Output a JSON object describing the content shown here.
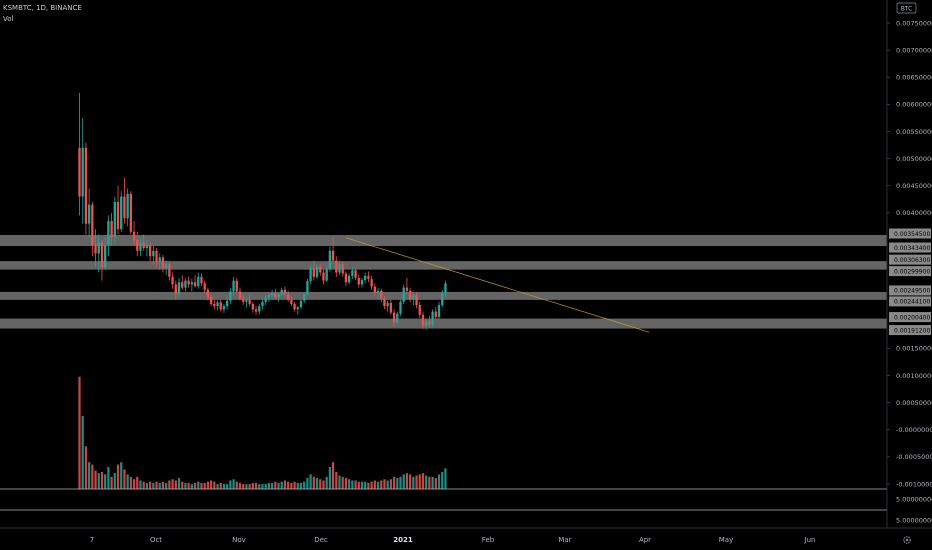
{
  "header": {
    "symbol_line": "KSMBTC, 1D, BINANCE",
    "volume_label": "Vol"
  },
  "currency_badge": "BTC",
  "colors": {
    "up": "#26a69a",
    "down": "#ef5350",
    "zone": "#8a8a8a",
    "trendline": "#c9a227",
    "axis_text": "#b2b5be"
  },
  "chart_data": {
    "type": "candlestick",
    "symbol": "KSMBTC",
    "interval": "1D",
    "exchange": "BINANCE",
    "price_axis": {
      "ticks": [
        "0.00750000",
        "0.00700000",
        "0.00650000",
        "0.00600000",
        "0.00550000",
        "0.00500000",
        "0.00450000",
        "0.00400000",
        "0.00150000",
        "0.00100000",
        "0.00050000",
        "-0.00000000",
        "-0.00050000",
        "-0.00100000"
      ],
      "ylim": [
        -0.0012,
        0.0078
      ]
    },
    "highlighted_levels": [
      "0.00354500",
      "0.00343400",
      "0.00306300",
      "0.00299900",
      "0.00249500",
      "0.00244100",
      "0.00200400",
      "0.00191200"
    ],
    "zones": [
      {
        "low": 0.003434,
        "high": 0.003545
      },
      {
        "low": 0.002999,
        "high": 0.003063
      },
      {
        "low": 0.002441,
        "high": 0.002495
      },
      {
        "low": 0.001912,
        "high": 0.002004
      }
    ],
    "lower_pane_labels": [
      "5.00000000",
      "5.00000000"
    ],
    "x_axis_labels": [
      {
        "text": "7",
        "bold": false
      },
      {
        "text": "Oct",
        "bold": false
      },
      {
        "text": "Nov",
        "bold": false
      },
      {
        "text": "Dec",
        "bold": false
      },
      {
        "text": "2021",
        "bold": true
      },
      {
        "text": "Feb",
        "bold": false
      },
      {
        "text": "Mar",
        "bold": false
      },
      {
        "text": "Apr",
        "bold": false
      },
      {
        "text": "May",
        "bold": false
      },
      {
        "text": "Jun",
        "bold": false
      }
    ],
    "trendline": {
      "from": {
        "candle": 83,
        "price": 0.00354
      },
      "to": {
        "candle": 153,
        "price": 0.00225
      }
    },
    "candles": {
      "fields": [
        "open",
        "high",
        "low",
        "close",
        "volume"
      ],
      "data": [
        [
          0.0052,
          0.00621,
          0.00395,
          0.0043,
          0.92
        ],
        [
          0.0043,
          0.00575,
          0.0038,
          0.0052,
          0.6
        ],
        [
          0.0052,
          0.0053,
          0.0036,
          0.0038,
          0.35
        ],
        [
          0.0038,
          0.00445,
          0.00355,
          0.00415,
          0.22
        ],
        [
          0.00415,
          0.0042,
          0.0032,
          0.0034,
          0.2
        ],
        [
          0.0034,
          0.0037,
          0.003,
          0.00325,
          0.15
        ],
        [
          0.00325,
          0.0036,
          0.0029,
          0.00345,
          0.13
        ],
        [
          0.00345,
          0.0035,
          0.00275,
          0.003,
          0.14
        ],
        [
          0.003,
          0.00355,
          0.00295,
          0.0034,
          0.12
        ],
        [
          0.0034,
          0.00395,
          0.0032,
          0.00385,
          0.18
        ],
        [
          0.00385,
          0.004,
          0.0034,
          0.00355,
          0.1
        ],
        [
          0.00355,
          0.0043,
          0.00345,
          0.0042,
          0.13
        ],
        [
          0.0042,
          0.0045,
          0.0036,
          0.0037,
          0.2
        ],
        [
          0.0037,
          0.0044,
          0.00365,
          0.0043,
          0.22
        ],
        [
          0.0043,
          0.00465,
          0.0038,
          0.0039,
          0.16
        ],
        [
          0.0039,
          0.00445,
          0.00375,
          0.00435,
          0.12
        ],
        [
          0.00435,
          0.0044,
          0.0036,
          0.00365,
          0.1
        ],
        [
          0.00365,
          0.00385,
          0.0034,
          0.0035,
          0.08
        ],
        [
          0.0035,
          0.00365,
          0.0032,
          0.0033,
          0.1
        ],
        [
          0.0033,
          0.00355,
          0.0032,
          0.00345,
          0.07
        ],
        [
          0.00345,
          0.0036,
          0.0033,
          0.00335,
          0.06
        ],
        [
          0.00335,
          0.0035,
          0.0032,
          0.0034,
          0.05
        ],
        [
          0.0034,
          0.00345,
          0.0031,
          0.0032,
          0.06
        ],
        [
          0.0032,
          0.0034,
          0.00305,
          0.0033,
          0.05
        ],
        [
          0.0033,
          0.00335,
          0.003,
          0.0031,
          0.06
        ],
        [
          0.0031,
          0.00325,
          0.00295,
          0.00318,
          0.05
        ],
        [
          0.00318,
          0.00322,
          0.0029,
          0.00298,
          0.06
        ],
        [
          0.00298,
          0.00312,
          0.00285,
          0.00305,
          0.05
        ],
        [
          0.00305,
          0.0031,
          0.00275,
          0.00282,
          0.07
        ],
        [
          0.00282,
          0.0029,
          0.0026,
          0.00268,
          0.08
        ],
        [
          0.00268,
          0.00275,
          0.0024,
          0.0025,
          0.07
        ],
        [
          0.0025,
          0.0028,
          0.00245,
          0.00272,
          0.09
        ],
        [
          0.00272,
          0.00285,
          0.00258,
          0.00262,
          0.06
        ],
        [
          0.00262,
          0.0028,
          0.00255,
          0.00275,
          0.05
        ],
        [
          0.00275,
          0.00282,
          0.00262,
          0.00268,
          0.05
        ],
        [
          0.00268,
          0.00278,
          0.00255,
          0.00272,
          0.04
        ],
        [
          0.00272,
          0.00285,
          0.00262,
          0.00265,
          0.05
        ],
        [
          0.00265,
          0.0029,
          0.0026,
          0.00282,
          0.06
        ],
        [
          0.00282,
          0.00288,
          0.00265,
          0.0027,
          0.05
        ],
        [
          0.0027,
          0.00275,
          0.00252,
          0.00258,
          0.05
        ],
        [
          0.00258,
          0.00262,
          0.00238,
          0.00245,
          0.06
        ],
        [
          0.00245,
          0.0025,
          0.00228,
          0.00232,
          0.07
        ],
        [
          0.00232,
          0.0024,
          0.00222,
          0.00228,
          0.06
        ],
        [
          0.00228,
          0.00238,
          0.0022,
          0.00235,
          0.04
        ],
        [
          0.00235,
          0.0024,
          0.00218,
          0.00222,
          0.05
        ],
        [
          0.00222,
          0.00232,
          0.00215,
          0.00228,
          0.04
        ],
        [
          0.00228,
          0.00242,
          0.00222,
          0.00238,
          0.04
        ],
        [
          0.00238,
          0.00262,
          0.00232,
          0.00255,
          0.07
        ],
        [
          0.00255,
          0.00282,
          0.00248,
          0.00275,
          0.08
        ],
        [
          0.00275,
          0.0028,
          0.0025,
          0.00255,
          0.06
        ],
        [
          0.00255,
          0.00262,
          0.00238,
          0.00242,
          0.05
        ],
        [
          0.00242,
          0.0025,
          0.0023,
          0.00236,
          0.04
        ],
        [
          0.00236,
          0.00244,
          0.00225,
          0.0024,
          0.04
        ],
        [
          0.0024,
          0.00248,
          0.00228,
          0.00232,
          0.04
        ],
        [
          0.00232,
          0.00236,
          0.00216,
          0.00222,
          0.05
        ],
        [
          0.00222,
          0.00228,
          0.00212,
          0.00218,
          0.05
        ],
        [
          0.00218,
          0.00232,
          0.00212,
          0.00228,
          0.04
        ],
        [
          0.00228,
          0.0024,
          0.00222,
          0.00236,
          0.04
        ],
        [
          0.00236,
          0.00248,
          0.0023,
          0.00244,
          0.04
        ],
        [
          0.00244,
          0.00254,
          0.00236,
          0.00248,
          0.05
        ],
        [
          0.00248,
          0.00258,
          0.00242,
          0.00252,
          0.05
        ],
        [
          0.00252,
          0.0026,
          0.0024,
          0.00244,
          0.06
        ],
        [
          0.00244,
          0.00252,
          0.00236,
          0.0025,
          0.05
        ],
        [
          0.0025,
          0.00262,
          0.00246,
          0.00258,
          0.06
        ],
        [
          0.00258,
          0.00264,
          0.00246,
          0.0025,
          0.07
        ],
        [
          0.0025,
          0.00256,
          0.00236,
          0.0024,
          0.06
        ],
        [
          0.0024,
          0.00246,
          0.00228,
          0.00232,
          0.05
        ],
        [
          0.00232,
          0.00236,
          0.00218,
          0.00222,
          0.06
        ],
        [
          0.00222,
          0.00228,
          0.00212,
          0.00226,
          0.05
        ],
        [
          0.00226,
          0.0024,
          0.00222,
          0.00238,
          0.05
        ],
        [
          0.00238,
          0.00252,
          0.00234,
          0.0025,
          0.06
        ],
        [
          0.0025,
          0.00278,
          0.00246,
          0.00274,
          0.09
        ],
        [
          0.00274,
          0.00305,
          0.00268,
          0.00298,
          0.12
        ],
        [
          0.00298,
          0.00312,
          0.00275,
          0.00282,
          0.1
        ],
        [
          0.00282,
          0.00305,
          0.00278,
          0.003,
          0.09
        ],
        [
          0.003,
          0.00306,
          0.00284,
          0.0029,
          0.08
        ],
        [
          0.0029,
          0.00296,
          0.00268,
          0.00275,
          0.07
        ],
        [
          0.00275,
          0.003,
          0.00272,
          0.00296,
          0.1
        ],
        [
          0.00296,
          0.00338,
          0.00292,
          0.0033,
          0.18
        ],
        [
          0.0033,
          0.00354,
          0.00305,
          0.00312,
          0.22
        ],
        [
          0.00312,
          0.0032,
          0.00282,
          0.0029,
          0.14
        ],
        [
          0.0029,
          0.00312,
          0.00285,
          0.00305,
          0.11
        ],
        [
          0.00305,
          0.0031,
          0.00282,
          0.00288,
          0.1
        ],
        [
          0.00288,
          0.00292,
          0.00265,
          0.00272,
          0.09
        ],
        [
          0.00272,
          0.00288,
          0.00268,
          0.00284,
          0.08
        ],
        [
          0.00284,
          0.003,
          0.00278,
          0.00294,
          0.07
        ],
        [
          0.00294,
          0.00298,
          0.00276,
          0.0028,
          0.07
        ],
        [
          0.0028,
          0.00286,
          0.00262,
          0.00268,
          0.06
        ],
        [
          0.00268,
          0.0028,
          0.00262,
          0.00276,
          0.06
        ],
        [
          0.00276,
          0.0029,
          0.0027,
          0.00284,
          0.06
        ],
        [
          0.00284,
          0.00292,
          0.00272,
          0.00278,
          0.05
        ],
        [
          0.00278,
          0.00284,
          0.00258,
          0.00264,
          0.06
        ],
        [
          0.00264,
          0.0027,
          0.00246,
          0.00252,
          0.07
        ],
        [
          0.00252,
          0.00262,
          0.0024,
          0.00256,
          0.06
        ],
        [
          0.00256,
          0.0026,
          0.00236,
          0.00242,
          0.07
        ],
        [
          0.00242,
          0.00246,
          0.00222,
          0.00228,
          0.08
        ],
        [
          0.00228,
          0.00238,
          0.00218,
          0.00234,
          0.07
        ],
        [
          0.00234,
          0.0024,
          0.00212,
          0.00216,
          0.08
        ],
        [
          0.00216,
          0.00222,
          0.0019,
          0.00198,
          0.1
        ],
        [
          0.00198,
          0.00218,
          0.00194,
          0.00214,
          0.09
        ],
        [
          0.00214,
          0.0024,
          0.0021,
          0.00236,
          0.1
        ],
        [
          0.00236,
          0.00268,
          0.00232,
          0.00262,
          0.12
        ],
        [
          0.00262,
          0.0028,
          0.0025,
          0.00256,
          0.13
        ],
        [
          0.00256,
          0.00262,
          0.00235,
          0.0024,
          0.12
        ],
        [
          0.0024,
          0.00252,
          0.0023,
          0.00248,
          0.1
        ],
        [
          0.00248,
          0.00254,
          0.00224,
          0.0023,
          0.11
        ],
        [
          0.0023,
          0.00236,
          0.00206,
          0.00212,
          0.12
        ],
        [
          0.00212,
          0.00218,
          0.00186,
          0.00192,
          0.13
        ],
        [
          0.00192,
          0.00205,
          0.00185,
          0.002,
          0.11
        ],
        [
          0.002,
          0.0021,
          0.00188,
          0.00194,
          0.1
        ],
        [
          0.00194,
          0.00222,
          0.0019,
          0.00218,
          0.1
        ],
        [
          0.00218,
          0.00226,
          0.00202,
          0.00208,
          0.09
        ],
        [
          0.00208,
          0.00236,
          0.00204,
          0.0023,
          0.12
        ],
        [
          0.0023,
          0.00258,
          0.00226,
          0.00252,
          0.14
        ],
        [
          0.00252,
          0.00275,
          0.00246,
          0.0027,
          0.17
        ]
      ]
    }
  }
}
